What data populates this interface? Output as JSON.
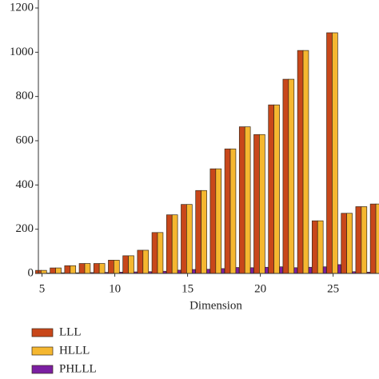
{
  "chart_data": {
    "type": "bar",
    "x_label": "Dimension",
    "x": [
      5,
      6,
      7,
      8,
      9,
      10,
      11,
      12,
      13,
      14,
      15,
      16,
      17,
      18,
      19,
      20,
      21,
      22,
      23,
      24,
      25,
      26,
      27,
      28
    ],
    "series": [
      {
        "name": "LLL",
        "color": "#c8471a",
        "values": [
          14,
          25,
          35,
          45,
          45,
          60,
          80,
          105,
          185,
          265,
          312,
          375,
          473,
          563,
          663,
          628,
          762,
          878,
          1008,
          238,
          1088,
          272,
          302,
          314
        ]
      },
      {
        "name": "HLLL",
        "color": "#f5b730",
        "values": [
          14,
          25,
          35,
          45,
          45,
          60,
          80,
          105,
          185,
          265,
          312,
          375,
          473,
          563,
          663,
          628,
          762,
          878,
          1008,
          238,
          1088,
          272,
          302,
          314
        ]
      },
      {
        "name": "PHLLL",
        "color": "#7b1fa2",
        "values": [
          2,
          3,
          3,
          4,
          5,
          6,
          7,
          8,
          10,
          15,
          18,
          19,
          22,
          27,
          26,
          28,
          30,
          26,
          28,
          30,
          40,
          8,
          6,
          6
        ]
      }
    ],
    "xlim": [
      4.75,
      29.25
    ],
    "xticks": [
      5,
      10,
      15,
      20,
      25
    ],
    "ylim": [
      0,
      1200
    ],
    "yticks": [
      0,
      200,
      400,
      600,
      800,
      1000,
      1200
    ]
  }
}
